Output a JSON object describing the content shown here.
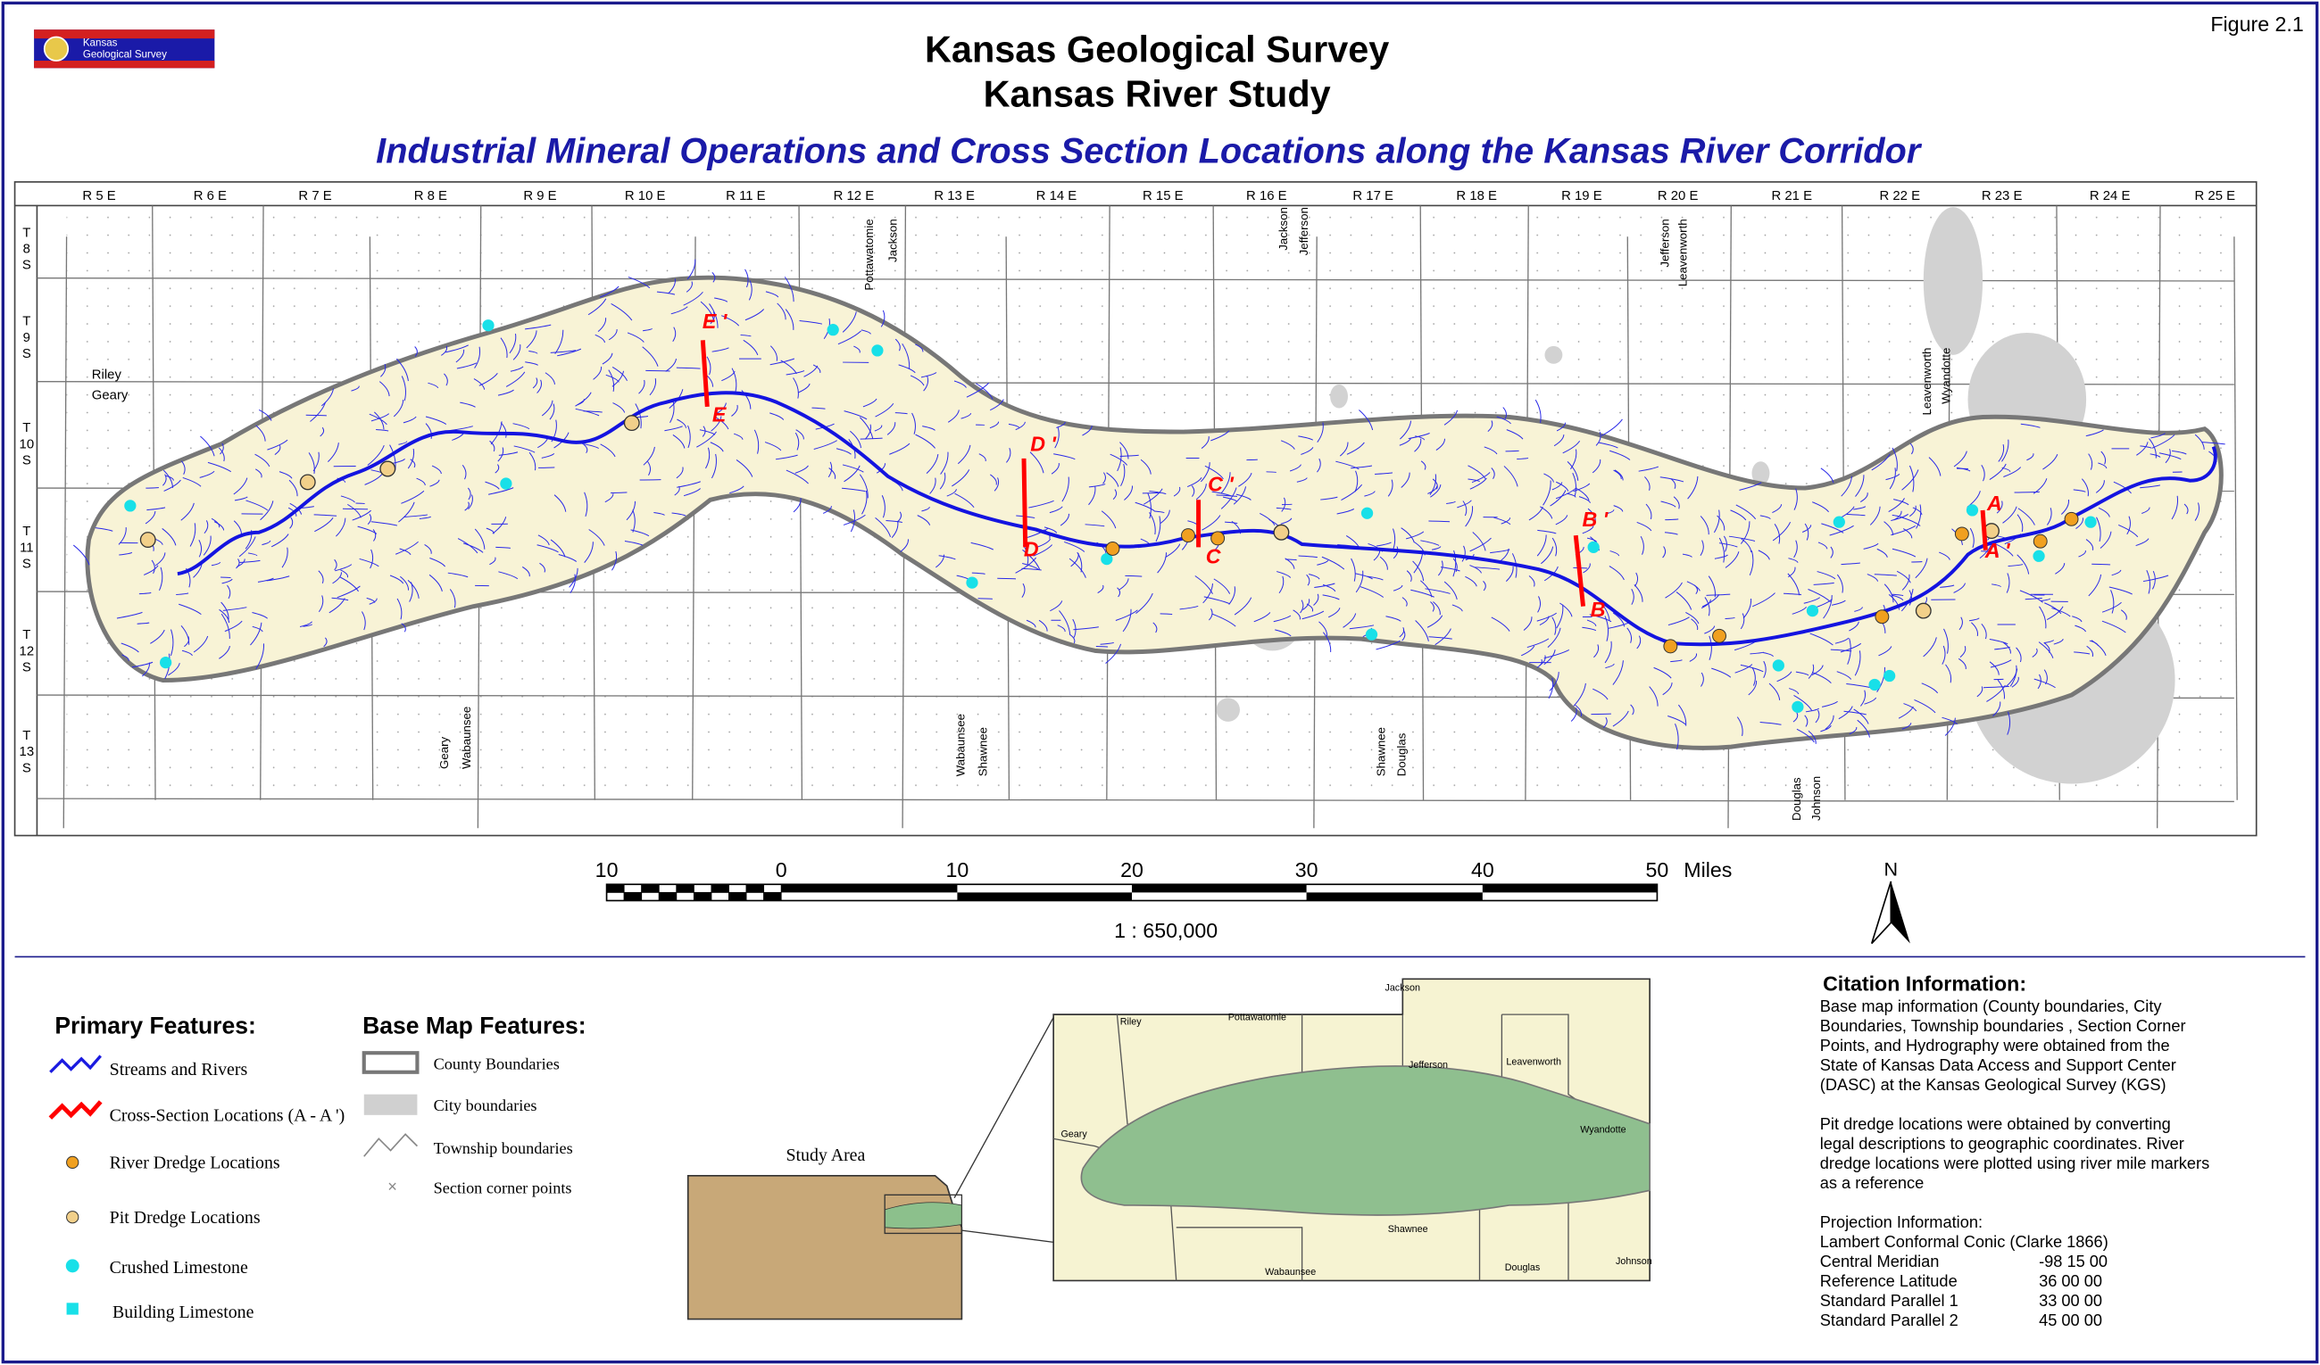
{
  "header": {
    "logo": [
      "Kansas",
      "Geological Survey"
    ],
    "figure": "Figure 2.1",
    "title": [
      "Kansas Geological Survey",
      "Kansas River Study"
    ],
    "subtitle": "Industrial Mineral Operations and Cross Section Locations along the Kansas River Corridor"
  },
  "map": {
    "ranges": [
      "R 5 E",
      "R 6 E",
      "R 7 E",
      "R 8 E",
      "R 9 E",
      "R 10 E",
      "R 11 E",
      "R 12 E",
      "R 13 E",
      "R 14 E",
      "R 15 E",
      "R 16 E",
      "R 17 E",
      "R 18 E",
      "R 19 E",
      "R 20 E",
      "R 21 E",
      "R 22 E",
      "R 23 E",
      "R 24 E",
      "R 25 E"
    ],
    "townships": [
      [
        "T",
        "8",
        "S"
      ],
      [
        "T",
        "9",
        "S"
      ],
      [
        "T",
        "10",
        "S"
      ],
      [
        "T",
        "11",
        "S"
      ],
      [
        "T",
        "12",
        "S"
      ],
      [
        "T",
        "13",
        "S"
      ]
    ],
    "counties": [
      [
        "Riley",
        "Geary"
      ],
      [
        "Pottawatomie",
        "Jackson"
      ],
      [
        "Jackson",
        "Jefferson"
      ],
      [
        "Jefferson",
        "Leavenworth"
      ],
      [
        "Leavenworth",
        "Wyandotte"
      ],
      [
        "Geary",
        "Wabaunsee"
      ],
      [
        "Wabaunsee",
        "Shawnee"
      ],
      [
        "Shawnee",
        "Douglas"
      ],
      [
        "Douglas",
        "Johnson"
      ]
    ],
    "cross_sections": [
      "E '",
      "E",
      "D '",
      "D",
      "C '",
      "C",
      "B '",
      "B",
      "A",
      "A '"
    ]
  },
  "scale": {
    "ticks": [
      "10",
      "0",
      "10",
      "20",
      "30",
      "40",
      "50"
    ],
    "units": "Miles",
    "ratio": "1 : 650,000",
    "north": "N"
  },
  "legend": {
    "primary": {
      "title": "Primary Features:",
      "items": [
        "Streams and Rivers",
        "Cross-Section Locations (A - A ')",
        "River Dredge Locations",
        "Pit Dredge Locations",
        "Crushed Limestone",
        "Building Limestone"
      ]
    },
    "base": {
      "title": "Base Map Features:",
      "items": [
        "County Boundaries",
        "City boundaries",
        "Township boundaries",
        "Section corner points"
      ]
    }
  },
  "inset": {
    "title": "Study Area",
    "counties": [
      "Jackson",
      "Riley",
      "Pottawatomie",
      "Jefferson",
      "Leavenworth",
      "Geary",
      "Wyandotte",
      "Shawnee",
      "Wabaunsee",
      "Douglas",
      "Johnson"
    ]
  },
  "citation": {
    "title": "Citation Information:",
    "paragraphs": [
      [
        "Base map information (County boundaries, City",
        "Boundaries, Township boundaries , Section Corner",
        "Points, and Hydrography were obtained from the",
        "State of Kansas Data Access and Support Center",
        "(DASC) at the Kansas Geological Survey (KGS)"
      ],
      [
        "Pit dredge locations were obtained by converting",
        "legal descriptions to geographic coordinates.  River",
        "dredge locations were plotted using river mile markers",
        "as a reference"
      ]
    ],
    "projection": {
      "title": "Projection Information:",
      "name": "Lambert Conformal Conic (Clarke 1866)",
      "params": [
        [
          "Central Meridian",
          "-98 15 00"
        ],
        [
          "Reference Latitude",
          "36 00 00"
        ],
        [
          "Standard Parallel 1",
          "33 00 00"
        ],
        [
          "Standard Parallel 2",
          "45 00 00"
        ]
      ]
    }
  }
}
